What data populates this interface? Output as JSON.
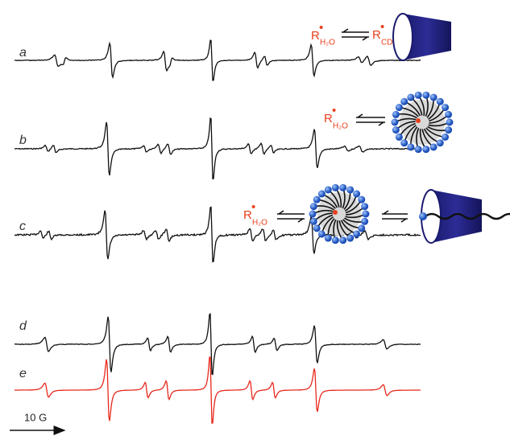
{
  "traces": [
    {
      "label": "a"
    },
    {
      "label": "b"
    },
    {
      "label": "c"
    },
    {
      "label": "d"
    },
    {
      "label": "e"
    }
  ],
  "scale_bar": "10 G",
  "species": {
    "radical": "R",
    "dot": "•",
    "water": "H₂O",
    "cd": "CD"
  }
}
